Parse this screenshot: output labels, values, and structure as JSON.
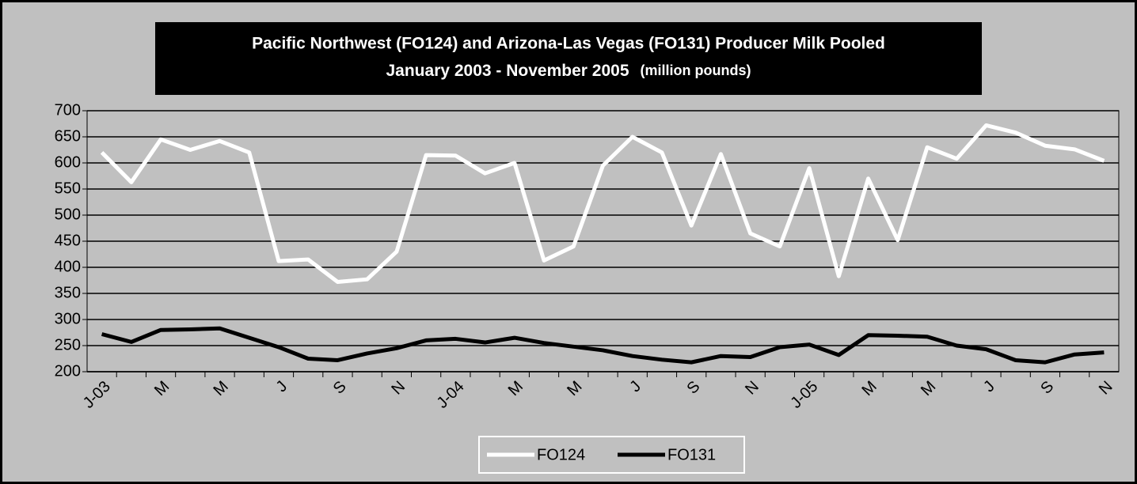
{
  "chart_data": {
    "type": "line",
    "title": "Pacific Northwest (FO124) and Arizona-Las Vegas (FO131) Producer Milk Pooled",
    "subtitle": "January 2003 - November 2005",
    "unit_note": "(million pounds)",
    "categories": [
      "J-03",
      null,
      "M",
      null,
      "M",
      null,
      "J",
      null,
      "S",
      null,
      "N",
      null,
      "J-04",
      null,
      "M",
      null,
      "M",
      null,
      "J",
      null,
      "S",
      null,
      "N",
      null,
      "J-05",
      null,
      "M",
      null,
      "M",
      null,
      "J",
      null,
      "S",
      null,
      "N"
    ],
    "series": [
      {
        "name": "FO124",
        "color": "#ffffff",
        "values": [
          620,
          563,
          645,
          625,
          642,
          620,
          412,
          415,
          372,
          377,
          430,
          615,
          614,
          580,
          600,
          413,
          440,
          595,
          650,
          620,
          480,
          617,
          465,
          440,
          590,
          383,
          570,
          452,
          630,
          608,
          672,
          658,
          633,
          626,
          604
        ]
      },
      {
        "name": "FO131",
        "color": "#000000",
        "values": [
          272,
          257,
          280,
          281,
          283,
          265,
          247,
          225,
          222,
          235,
          245,
          260,
          263,
          256,
          265,
          255,
          248,
          241,
          230,
          223,
          218,
          230,
          228,
          247,
          252,
          232,
          270,
          269,
          267,
          250,
          243,
          222,
          218,
          233,
          237
        ]
      }
    ],
    "ylim": [
      200,
      700
    ],
    "yticks": [
      200,
      250,
      300,
      350,
      400,
      450,
      500,
      550,
      600,
      650,
      700
    ],
    "grid": true,
    "legend": "bottom"
  }
}
